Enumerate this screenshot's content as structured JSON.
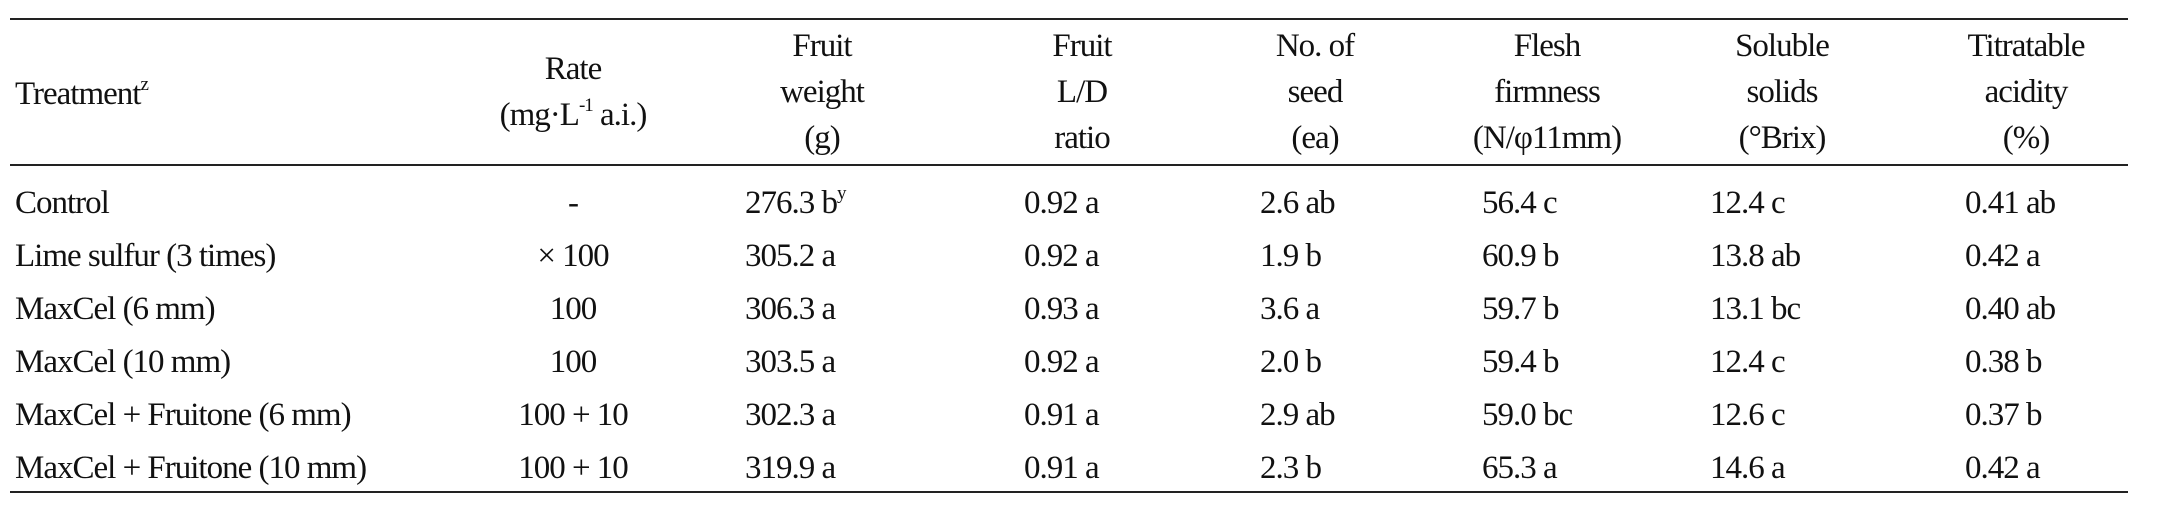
{
  "header": {
    "treatment": "Treatment",
    "treatment_sup": "z",
    "rate": [
      "Rate",
      "(mg·L",
      "-1",
      " a.i.)"
    ],
    "fruit_weight": [
      "Fruit",
      "weight",
      "(g)"
    ],
    "ld_ratio": [
      "Fruit",
      "L/D",
      "ratio"
    ],
    "seed": [
      "No. of",
      "seed",
      "(ea)"
    ],
    "firmness": [
      "Flesh",
      "firmness",
      "(N/φ11mm)"
    ],
    "solids": [
      "Soluble",
      "solids",
      "(°Brix)"
    ],
    "acidity": [
      "Titratable",
      "acidity",
      "(%)"
    ]
  },
  "rows": [
    {
      "treatment": "Control",
      "rate": "-",
      "weight": "276.3 b",
      "weight_sup": "y",
      "ld": "0.92 a",
      "seed": "2.6 ab",
      "firmness": "56.4 c",
      "solids": "12.4 c",
      "acidity": "0.41 ab"
    },
    {
      "treatment": "Lime sulfur (3 times)",
      "rate": "× 100",
      "weight": "305.2 a",
      "weight_sup": "",
      "ld": "0.92 a",
      "seed": "1.9 b",
      "firmness": "60.9 b",
      "solids": "13.8 ab",
      "acidity": "0.42 a"
    },
    {
      "treatment": "MaxCel (6 mm)",
      "rate": "100",
      "weight": "306.3 a",
      "weight_sup": "",
      "ld": "0.93 a",
      "seed": "3.6 a",
      "firmness": "59.7 b",
      "solids": "13.1 bc",
      "acidity": "0.40 ab"
    },
    {
      "treatment": "MaxCel (10 mm)",
      "rate": "100",
      "weight": "303.5 a",
      "weight_sup": "",
      "ld": "0.92 a",
      "seed": "2.0 b",
      "firmness": "59.4 b",
      "solids": "12.4 c",
      "acidity": "0.38 b"
    },
    {
      "treatment": "MaxCel + Fruitone (6 mm)",
      "rate": "100 + 10",
      "weight": "302.3 a",
      "weight_sup": "",
      "ld": "0.91 a",
      "seed": "2.9 ab",
      "firmness": "59.0 bc",
      "solids": "12.6 c",
      "acidity": "0.37 b"
    },
    {
      "treatment": "MaxCel + Fruitone (10 mm)",
      "rate": "100 + 10",
      "weight": "319.9 a",
      "weight_sup": "",
      "ld": "0.91 a",
      "seed": "2.3 b",
      "firmness": "65.3 a",
      "solids": "14.6 a",
      "acidity": "0.42 a"
    }
  ]
}
